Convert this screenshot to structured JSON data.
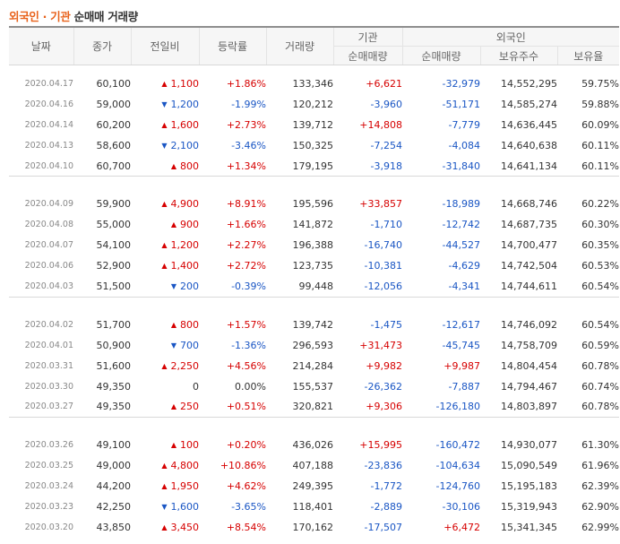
{
  "title": {
    "part1": "외국인",
    "separator": " · ",
    "part2": "기관",
    "part3": "순매매 거래량"
  },
  "headers": {
    "date": "날짜",
    "close": "종가",
    "change": "전일비",
    "rate": "등락률",
    "volume": "거래량",
    "inst_group": "기관",
    "inst_net": "순매매량",
    "foreign_group": "외국인",
    "foreign_net": "순매매량",
    "foreign_shares": "보유주수",
    "foreign_ratio": "보유율"
  },
  "colors": {
    "up": "#d60000",
    "down": "#1a56c4",
    "accent": "#e8611a"
  },
  "groups": [
    [
      {
        "date": "2020.04.17",
        "close": "60,100",
        "dir": "up",
        "change": "1,100",
        "rate": "+1.86%",
        "volume": "133,346",
        "inst": "+6,621",
        "foreign": "-32,979",
        "shares": "14,552,295",
        "ratio": "59.75%"
      },
      {
        "date": "2020.04.16",
        "close": "59,000",
        "dir": "down",
        "change": "1,200",
        "rate": "-1.99%",
        "volume": "120,212",
        "inst": "-3,960",
        "foreign": "-51,171",
        "shares": "14,585,274",
        "ratio": "59.88%"
      },
      {
        "date": "2020.04.14",
        "close": "60,200",
        "dir": "up",
        "change": "1,600",
        "rate": "+2.73%",
        "volume": "139,712",
        "inst": "+14,808",
        "foreign": "-7,779",
        "shares": "14,636,445",
        "ratio": "60.09%"
      },
      {
        "date": "2020.04.13",
        "close": "58,600",
        "dir": "down",
        "change": "2,100",
        "rate": "-3.46%",
        "volume": "150,325",
        "inst": "-7,254",
        "foreign": "-4,084",
        "shares": "14,640,638",
        "ratio": "60.11%"
      },
      {
        "date": "2020.04.10",
        "close": "60,700",
        "dir": "up",
        "change": "800",
        "rate": "+1.34%",
        "volume": "179,195",
        "inst": "-3,918",
        "foreign": "-31,840",
        "shares": "14,641,134",
        "ratio": "60.11%"
      }
    ],
    [
      {
        "date": "2020.04.09",
        "close": "59,900",
        "dir": "up",
        "change": "4,900",
        "rate": "+8.91%",
        "volume": "195,596",
        "inst": "+33,857",
        "foreign": "-18,989",
        "shares": "14,668,746",
        "ratio": "60.22%"
      },
      {
        "date": "2020.04.08",
        "close": "55,000",
        "dir": "up",
        "change": "900",
        "rate": "+1.66%",
        "volume": "141,872",
        "inst": "-1,710",
        "foreign": "-12,742",
        "shares": "14,687,735",
        "ratio": "60.30%"
      },
      {
        "date": "2020.04.07",
        "close": "54,100",
        "dir": "up",
        "change": "1,200",
        "rate": "+2.27%",
        "volume": "196,388",
        "inst": "-16,740",
        "foreign": "-44,527",
        "shares": "14,700,477",
        "ratio": "60.35%"
      },
      {
        "date": "2020.04.06",
        "close": "52,900",
        "dir": "up",
        "change": "1,400",
        "rate": "+2.72%",
        "volume": "123,735",
        "inst": "-10,381",
        "foreign": "-4,629",
        "shares": "14,742,504",
        "ratio": "60.53%"
      },
      {
        "date": "2020.04.03",
        "close": "51,500",
        "dir": "down",
        "change": "200",
        "rate": "-0.39%",
        "volume": "99,448",
        "inst": "-12,056",
        "foreign": "-4,341",
        "shares": "14,744,611",
        "ratio": "60.54%"
      }
    ],
    [
      {
        "date": "2020.04.02",
        "close": "51,700",
        "dir": "up",
        "change": "800",
        "rate": "+1.57%",
        "volume": "139,742",
        "inst": "-1,475",
        "foreign": "-12,617",
        "shares": "14,746,092",
        "ratio": "60.54%"
      },
      {
        "date": "2020.04.01",
        "close": "50,900",
        "dir": "down",
        "change": "700",
        "rate": "-1.36%",
        "volume": "296,593",
        "inst": "+31,473",
        "foreign": "-45,745",
        "shares": "14,758,709",
        "ratio": "60.59%"
      },
      {
        "date": "2020.03.31",
        "close": "51,600",
        "dir": "up",
        "change": "2,250",
        "rate": "+4.56%",
        "volume": "214,284",
        "inst": "+9,982",
        "foreign": "+9,987",
        "shares": "14,804,454",
        "ratio": "60.78%"
      },
      {
        "date": "2020.03.30",
        "close": "49,350",
        "dir": "flat",
        "change": "0",
        "rate": "0.00%",
        "volume": "155,537",
        "inst": "-26,362",
        "foreign": "-7,887",
        "shares": "14,794,467",
        "ratio": "60.74%"
      },
      {
        "date": "2020.03.27",
        "close": "49,350",
        "dir": "up",
        "change": "250",
        "rate": "+0.51%",
        "volume": "320,821",
        "inst": "+9,306",
        "foreign": "-126,180",
        "shares": "14,803,897",
        "ratio": "60.78%"
      }
    ],
    [
      {
        "date": "2020.03.26",
        "close": "49,100",
        "dir": "up",
        "change": "100",
        "rate": "+0.20%",
        "volume": "436,026",
        "inst": "+15,995",
        "foreign": "-160,472",
        "shares": "14,930,077",
        "ratio": "61.30%"
      },
      {
        "date": "2020.03.25",
        "close": "49,000",
        "dir": "up",
        "change": "4,800",
        "rate": "+10.86%",
        "volume": "407,188",
        "inst": "-23,836",
        "foreign": "-104,634",
        "shares": "15,090,549",
        "ratio": "61.96%"
      },
      {
        "date": "2020.03.24",
        "close": "44,200",
        "dir": "up",
        "change": "1,950",
        "rate": "+4.62%",
        "volume": "249,395",
        "inst": "-1,772",
        "foreign": "-124,760",
        "shares": "15,195,183",
        "ratio": "62.39%"
      },
      {
        "date": "2020.03.23",
        "close": "42,250",
        "dir": "down",
        "change": "1,600",
        "rate": "-3.65%",
        "volume": "118,401",
        "inst": "-2,889",
        "foreign": "-30,106",
        "shares": "15,319,943",
        "ratio": "62.90%"
      },
      {
        "date": "2020.03.20",
        "close": "43,850",
        "dir": "up",
        "change": "3,450",
        "rate": "+8.54%",
        "volume": "170,162",
        "inst": "-17,507",
        "foreign": "+6,472",
        "shares": "15,341,345",
        "ratio": "62.99%"
      }
    ]
  ]
}
